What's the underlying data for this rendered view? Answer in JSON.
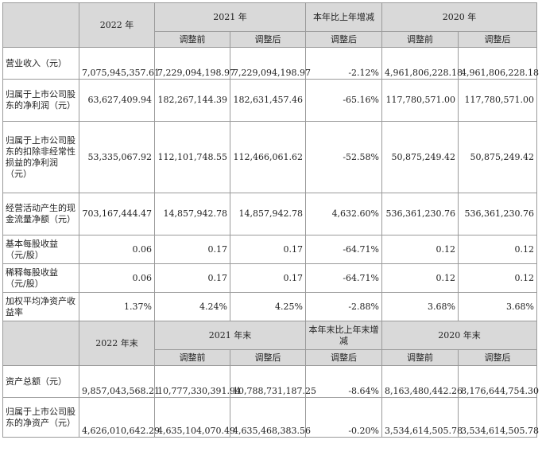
{
  "header1": {
    "year2022": "2022 年",
    "year2021": "2021 年",
    "change": "本年比上年增减",
    "year2020": "2020 年",
    "before": "调整前",
    "after": "调整后",
    "after_change": "调整后"
  },
  "header2": {
    "year2022": "2022 年末",
    "year2021": "2021 年末",
    "change": "本年末比上年末增减",
    "year2020": "2020 年末",
    "before": "调整前",
    "after": "调整后",
    "after_change": "调整后"
  },
  "rows_top": [
    {
      "label": "营业收入（元）",
      "v2022": "7,075,945,357.61",
      "v2021b": "7,229,094,198.97",
      "v2021a": "7,229,094,198.97",
      "chg": "-2.12%",
      "v2020b": "4,961,806,228.18",
      "v2020a": "4,961,806,228.18"
    },
    {
      "label": "归属于上市公司股东的净利润（元）",
      "v2022": "63,627,409.94",
      "v2021b": "182,267,144.39",
      "v2021a": "182,631,457.46",
      "chg": "-65.16%",
      "v2020b": "117,780,571.00",
      "v2020a": "117,780,571.00"
    },
    {
      "label": "归属于上市公司股东的扣除非经常性损益的净利润（元）",
      "v2022": "53,335,067.92",
      "v2021b": "112,101,748.55",
      "v2021a": "112,466,061.62",
      "chg": "-52.58%",
      "v2020b": "50,875,249.42",
      "v2020a": "50,875,249.42"
    },
    {
      "label": "经营活动产生的现金流量净额（元）",
      "v2022": "703,167,444.47",
      "v2021b": "14,857,942.78",
      "v2021a": "14,857,942.78",
      "chg": "4,632.60%",
      "v2020b": "536,361,230.76",
      "v2020a": "536,361,230.76"
    },
    {
      "label": "基本每股收益（元/股）",
      "v2022": "0.06",
      "v2021b": "0.17",
      "v2021a": "0.17",
      "chg": "-64.71%",
      "v2020b": "0.12",
      "v2020a": "0.12"
    },
    {
      "label": "稀释每股收益（元/股）",
      "v2022": "0.06",
      "v2021b": "0.17",
      "v2021a": "0.17",
      "chg": "-64.71%",
      "v2020b": "0.12",
      "v2020a": "0.12"
    },
    {
      "label": "加权平均净资产收益率",
      "v2022": "1.37%",
      "v2021b": "4.24%",
      "v2021a": "4.25%",
      "chg": "-2.88%",
      "v2020b": "3.68%",
      "v2020a": "3.68%"
    }
  ],
  "rows_bottom": [
    {
      "label": "资产总额（元）",
      "v2022": "9,857,043,568.21",
      "v2021b": "10,777,330,391.94",
      "v2021a": "10,788,731,187.25",
      "chg": "-8.64%",
      "v2020b": "8,163,480,442.26",
      "v2020a": "8,176,644,754.30"
    },
    {
      "label": "归属于上市公司股东的净资产（元）",
      "v2022": "4,626,010,642.29",
      "v2021b": "4,635,104,070.49",
      "v2021a": "4,635,468,383.56",
      "chg": "-0.20%",
      "v2020b": "3,534,614,505.78",
      "v2020a": "3,534,614,505.78"
    }
  ]
}
